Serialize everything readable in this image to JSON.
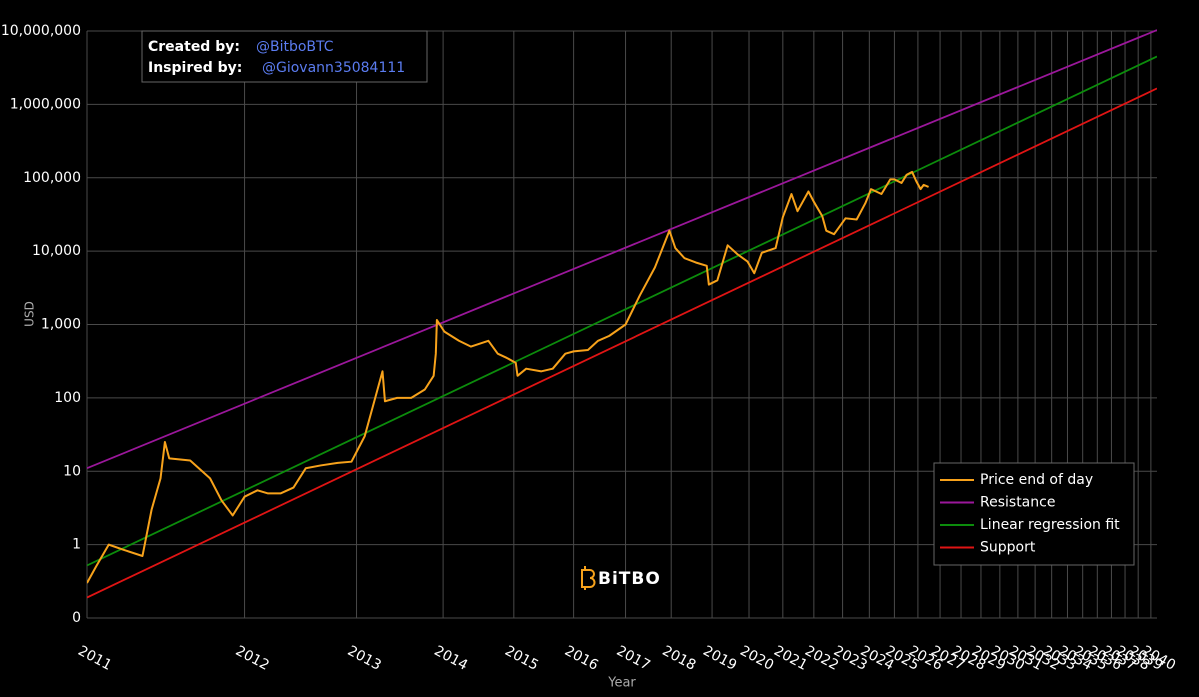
{
  "chart_data": {
    "type": "line",
    "annotation": {
      "created_label": "Created by:",
      "created_by": "@BitboBTC",
      "inspired_label": "Inspired by:",
      "inspired_by": "@Giovann35084111"
    },
    "watermark": "BiTBO",
    "x_label": "Year",
    "y_label": "USD",
    "x_log": true,
    "y_log": true,
    "grid": true,
    "legend_position": "bottom-right",
    "xlim": [
      728,
      11500
    ],
    "ylim": [
      0.1,
      10000000
    ],
    "xticks": [
      {
        "value": 728,
        "label": "2011"
      },
      {
        "value": 1093,
        "label": "2012"
      },
      {
        "value": 1459,
        "label": "2013"
      },
      {
        "value": 1824,
        "label": "2014"
      },
      {
        "value": 2189,
        "label": "2015"
      },
      {
        "value": 2554,
        "label": "2016"
      },
      {
        "value": 2920,
        "label": "2017"
      },
      {
        "value": 3285,
        "label": "2018"
      },
      {
        "value": 3650,
        "label": "2019"
      },
      {
        "value": 4015,
        "label": "2020"
      },
      {
        "value": 4381,
        "label": "2021"
      },
      {
        "value": 4746,
        "label": "2022"
      },
      {
        "value": 5111,
        "label": "2023"
      },
      {
        "value": 5476,
        "label": "2024"
      },
      {
        "value": 5842,
        "label": "2025"
      },
      {
        "value": 6207,
        "label": "2026"
      },
      {
        "value": 6572,
        "label": "2027"
      },
      {
        "value": 6937,
        "label": "2028"
      },
      {
        "value": 7303,
        "label": "2029"
      },
      {
        "value": 7668,
        "label": "2030"
      },
      {
        "value": 8033,
        "label": "2031"
      },
      {
        "value": 8398,
        "label": "2032"
      },
      {
        "value": 8764,
        "label": "2033"
      },
      {
        "value": 9129,
        "label": "2034"
      },
      {
        "value": 9494,
        "label": "2035"
      },
      {
        "value": 9859,
        "label": "2036"
      },
      {
        "value": 10225,
        "label": "2037"
      },
      {
        "value": 10590,
        "label": "2038"
      },
      {
        "value": 10955,
        "label": "2039"
      },
      {
        "value": 11320,
        "label": "2040"
      }
    ],
    "yticks": [
      {
        "value": 0.1,
        "label": "0"
      },
      1,
      10,
      100,
      {
        "value": 1000,
        "label": "1,000"
      },
      {
        "value": 10000,
        "label": "10,000"
      },
      {
        "value": 100000,
        "label": "100,000"
      },
      {
        "value": 1000000,
        "label": "1,000,000"
      },
      {
        "value": 10000000,
        "label": "10,000,000"
      }
    ],
    "series": [
      {
        "name": "Price end of day",
        "color": "#f7a21b",
        "x": [
          728,
          745,
          770,
          800,
          840,
          860,
          880,
          890,
          900,
          950,
          1000,
          1030,
          1060,
          1093,
          1130,
          1160,
          1200,
          1240,
          1280,
          1330,
          1390,
          1440,
          1490,
          1560,
          1570,
          1620,
          1680,
          1740,
          1780,
          1790,
          1795,
          1830,
          1900,
          1960,
          2050,
          2100,
          2150,
          2200,
          2210,
          2260,
          2350,
          2420,
          2500,
          2554,
          2650,
          2720,
          2800,
          2920,
          3030,
          3150,
          3270,
          3320,
          3400,
          3500,
          3600,
          3620,
          3700,
          3800,
          3900,
          4000,
          4070,
          4150,
          4300,
          4381,
          4480,
          4550,
          4680,
          4746,
          4850,
          4900,
          5000,
          5150,
          5300,
          5420,
          5500,
          5650,
          5780,
          5842,
          5950,
          6030,
          6115,
          6180,
          6250,
          6300,
          6380
        ],
        "values": [
          0.3,
          0.5,
          1.0,
          0.85,
          0.7,
          3,
          8,
          25,
          15,
          14,
          8,
          4,
          2.5,
          4.5,
          5.5,
          5,
          5,
          6,
          11,
          12,
          13,
          13.5,
          30,
          230,
          90,
          100,
          100,
          130,
          200,
          400,
          1150,
          800,
          600,
          500,
          600,
          400,
          350,
          300,
          200,
          250,
          230,
          250,
          400,
          430,
          450,
          600,
          700,
          1000,
          2500,
          6000,
          19000,
          11000,
          8000,
          7000,
          6300,
          3500,
          4000,
          12000,
          9000,
          7200,
          5000,
          9500,
          11000,
          29000,
          60000,
          35000,
          65000,
          47000,
          30000,
          19000,
          17000,
          28000,
          27000,
          45000,
          70000,
          60000,
          95000,
          95000,
          85000,
          110000,
          120000,
          90000,
          70000,
          80000,
          75000
        ]
      },
      {
        "name": "Resistance",
        "color": "#9b179b",
        "x": [
          728,
          11500
        ],
        "values": [
          11,
          10300000
        ]
      },
      {
        "name": "Linear regression fit",
        "color": "#0c8c0c",
        "x": [
          728,
          11500
        ],
        "values": [
          0.52,
          4500000
        ]
      },
      {
        "name": "Support",
        "color": "#e01414",
        "x": [
          728,
          11500
        ],
        "values": [
          0.19,
          1650000
        ]
      }
    ]
  }
}
